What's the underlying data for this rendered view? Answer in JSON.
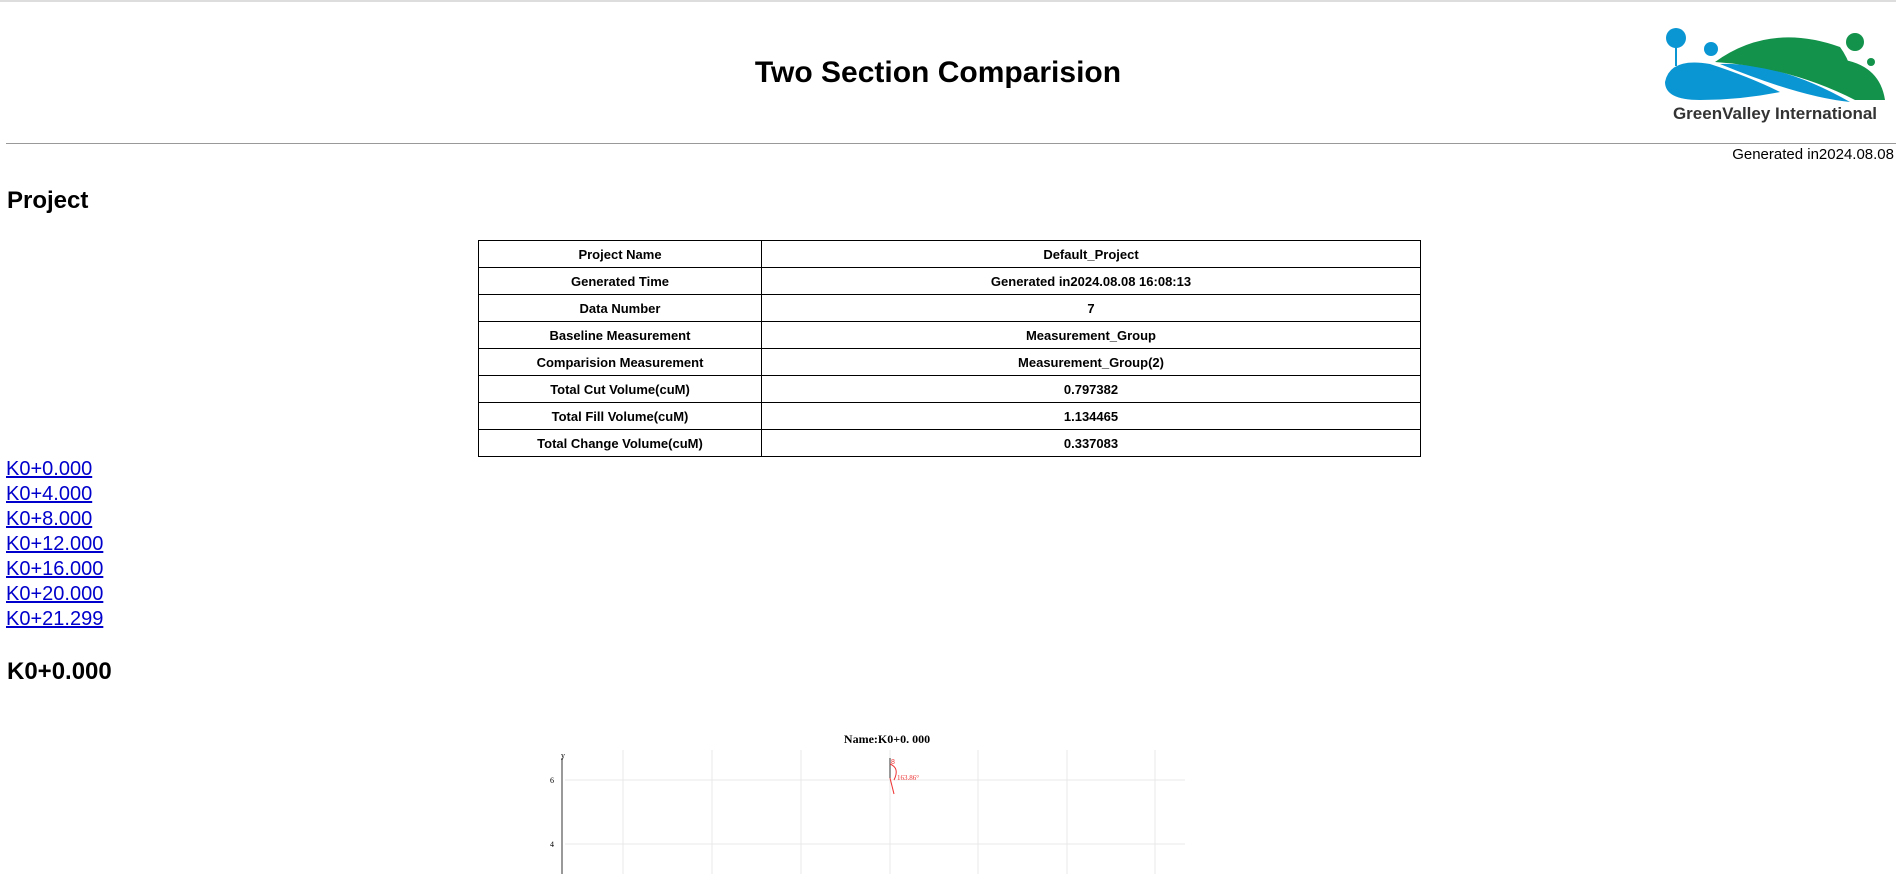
{
  "header": {
    "title": "Two Section Comparision",
    "logo_text": "GreenValley International",
    "generated": "Generated in2024.08.08",
    "colors": {
      "logo_blue": "#0a96d3",
      "logo_green": "#12924a"
    }
  },
  "project": {
    "heading": "Project",
    "rows": [
      {
        "label": "Project Name",
        "value": "Default_Project"
      },
      {
        "label": "Generated Time",
        "value": "Generated in2024.08.08 16:08:13"
      },
      {
        "label": "Data Number",
        "value": "7"
      },
      {
        "label": "Baseline Measurement",
        "value": "Measurement_Group"
      },
      {
        "label": "Comparision Measurement",
        "value": "Measurement_Group(2)"
      },
      {
        "label": "Total Cut Volume(cuM)",
        "value": "0.797382"
      },
      {
        "label": "Total Fill Volume(cuM)",
        "value": "1.134465"
      },
      {
        "label": "Total Change Volume(cuM)",
        "value": "0.337083"
      }
    ]
  },
  "links": [
    "K0+0.000",
    "K0+4.000",
    "K0+8.000",
    "K0+12.000",
    "K0+16.000",
    "K0+20.000",
    "K0+21.299"
  ],
  "section": {
    "heading": "K0+0.000",
    "chart_title": "Name:K0+0. 000",
    "y_label": "y",
    "y_ticks": [
      "6",
      "4"
    ],
    "angle_label": "163.86°",
    "marker": "8"
  }
}
